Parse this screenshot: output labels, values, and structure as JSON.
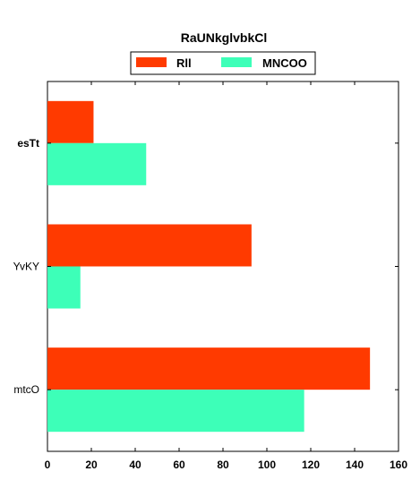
{
  "chart_data": {
    "type": "bar",
    "orientation": "horizontal",
    "title": "RaUNkglvbkCl",
    "categories": [
      "esTt",
      "YvKY",
      "mtcO"
    ],
    "series": [
      {
        "name": "Rll",
        "color": "#ff3a00",
        "values": [
          21,
          93,
          147
        ]
      },
      {
        "name": "MNCOO",
        "color": "#3dffb8",
        "values": [
          45,
          15,
          117
        ]
      }
    ],
    "xlim": [
      0,
      160
    ],
    "xticks": [
      0,
      20,
      40,
      60,
      80,
      100,
      120,
      140,
      160
    ],
    "xlabel": "",
    "ylabel": "",
    "grid": false,
    "legend_position": "top-center"
  }
}
